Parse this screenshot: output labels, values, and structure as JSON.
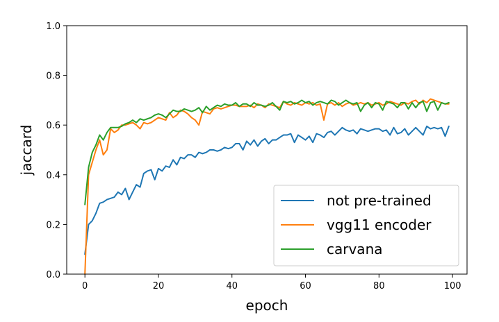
{
  "chart_data": {
    "type": "line",
    "xlabel": "epoch",
    "ylabel": "jaccard",
    "xlim": [
      -4.95,
      103.95
    ],
    "ylim": [
      0.0,
      1.0
    ],
    "x_ticks": [
      0,
      20,
      40,
      60,
      80,
      100
    ],
    "y_ticks": [
      0.0,
      0.2,
      0.4,
      0.6,
      0.8,
      1.0
    ],
    "grid": false,
    "legend_position": "lower-right",
    "x": [
      0,
      1,
      2,
      3,
      4,
      5,
      6,
      7,
      8,
      9,
      10,
      11,
      12,
      13,
      14,
      15,
      16,
      17,
      18,
      19,
      20,
      21,
      22,
      23,
      24,
      25,
      26,
      27,
      28,
      29,
      30,
      31,
      32,
      33,
      34,
      35,
      36,
      37,
      38,
      39,
      40,
      41,
      42,
      43,
      44,
      45,
      46,
      47,
      48,
      49,
      50,
      51,
      52,
      53,
      54,
      55,
      56,
      57,
      58,
      59,
      60,
      61,
      62,
      63,
      64,
      65,
      66,
      67,
      68,
      69,
      70,
      71,
      72,
      73,
      74,
      75,
      76,
      77,
      78,
      79,
      80,
      81,
      82,
      83,
      84,
      85,
      86,
      87,
      88,
      89,
      90,
      91,
      92,
      93,
      94,
      95,
      96,
      97,
      98,
      99
    ],
    "series": [
      {
        "name": "not pre-trained",
        "color": "#1f77b4",
        "values": [
          0.08,
          0.2,
          0.215,
          0.245,
          0.285,
          0.29,
          0.3,
          0.305,
          0.31,
          0.33,
          0.32,
          0.345,
          0.3,
          0.33,
          0.36,
          0.35,
          0.405,
          0.415,
          0.42,
          0.38,
          0.425,
          0.415,
          0.435,
          0.43,
          0.46,
          0.44,
          0.47,
          0.465,
          0.48,
          0.48,
          0.47,
          0.49,
          0.485,
          0.49,
          0.5,
          0.5,
          0.495,
          0.5,
          0.51,
          0.505,
          0.51,
          0.525,
          0.525,
          0.5,
          0.535,
          0.52,
          0.54,
          0.515,
          0.535,
          0.545,
          0.525,
          0.54,
          0.54,
          0.55,
          0.56,
          0.56,
          0.565,
          0.53,
          0.56,
          0.55,
          0.54,
          0.555,
          0.53,
          0.565,
          0.56,
          0.55,
          0.57,
          0.575,
          0.56,
          0.575,
          0.59,
          0.58,
          0.575,
          0.58,
          0.565,
          0.585,
          0.58,
          0.575,
          0.58,
          0.585,
          0.585,
          0.575,
          0.58,
          0.56,
          0.59,
          0.565,
          0.57,
          0.585,
          0.56,
          0.575,
          0.59,
          0.575,
          0.56,
          0.595,
          0.585,
          0.59,
          0.585,
          0.59,
          0.555,
          0.595
        ]
      },
      {
        "name": "vgg11 encoder",
        "color": "#ff7f0e",
        "values": [
          0.0,
          0.4,
          0.45,
          0.5,
          0.54,
          0.48,
          0.5,
          0.585,
          0.57,
          0.58,
          0.6,
          0.6,
          0.605,
          0.61,
          0.6,
          0.585,
          0.61,
          0.605,
          0.61,
          0.62,
          0.63,
          0.625,
          0.62,
          0.65,
          0.63,
          0.64,
          0.66,
          0.655,
          0.645,
          0.63,
          0.62,
          0.6,
          0.655,
          0.65,
          0.645,
          0.665,
          0.67,
          0.665,
          0.67,
          0.675,
          0.68,
          0.68,
          0.675,
          0.675,
          0.675,
          0.68,
          0.67,
          0.685,
          0.68,
          0.67,
          0.685,
          0.68,
          0.675,
          0.67,
          0.695,
          0.685,
          0.68,
          0.69,
          0.685,
          0.68,
          0.69,
          0.685,
          0.69,
          0.68,
          0.685,
          0.62,
          0.685,
          0.69,
          0.68,
          0.69,
          0.675,
          0.685,
          0.69,
          0.68,
          0.685,
          0.69,
          0.685,
          0.69,
          0.68,
          0.685,
          0.69,
          0.68,
          0.685,
          0.695,
          0.69,
          0.685,
          0.68,
          0.69,
          0.685,
          0.695,
          0.7,
          0.685,
          0.7,
          0.69,
          0.705,
          0.7,
          0.695,
          0.69,
          0.685,
          0.685
        ]
      },
      {
        "name": "carvana",
        "color": "#2ca02c",
        "values": [
          0.28,
          0.43,
          0.49,
          0.52,
          0.56,
          0.54,
          0.57,
          0.59,
          0.59,
          0.59,
          0.595,
          0.605,
          0.61,
          0.62,
          0.61,
          0.625,
          0.62,
          0.625,
          0.63,
          0.64,
          0.645,
          0.64,
          0.63,
          0.645,
          0.66,
          0.655,
          0.655,
          0.665,
          0.66,
          0.655,
          0.66,
          0.67,
          0.65,
          0.675,
          0.66,
          0.67,
          0.68,
          0.675,
          0.685,
          0.68,
          0.68,
          0.69,
          0.675,
          0.685,
          0.685,
          0.675,
          0.69,
          0.68,
          0.68,
          0.675,
          0.68,
          0.69,
          0.675,
          0.66,
          0.695,
          0.69,
          0.695,
          0.685,
          0.69,
          0.7,
          0.69,
          0.695,
          0.68,
          0.69,
          0.695,
          0.69,
          0.685,
          0.7,
          0.695,
          0.68,
          0.69,
          0.7,
          0.69,
          0.685,
          0.69,
          0.655,
          0.68,
          0.69,
          0.67,
          0.69,
          0.685,
          0.66,
          0.695,
          0.69,
          0.685,
          0.67,
          0.69,
          0.69,
          0.665,
          0.69,
          0.67,
          0.69,
          0.695,
          0.655,
          0.69,
          0.695,
          0.66,
          0.69,
          0.685,
          0.69
        ]
      }
    ]
  }
}
